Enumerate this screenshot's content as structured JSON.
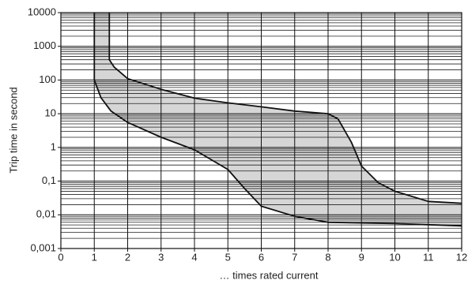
{
  "chart_data": {
    "type": "line",
    "log_scale_y": true,
    "grid": true,
    "band_fill": "#d6d6d6",
    "x_label": "… times rated current",
    "y_label": "Trip time in second",
    "xlim": [
      0,
      12
    ],
    "xticks": [
      0,
      1,
      2,
      3,
      4,
      5,
      6,
      7,
      8,
      9,
      10,
      11,
      12
    ],
    "ylim": [
      0.001,
      10000
    ],
    "yticks": [
      {
        "value": 0.001,
        "label": "0,001"
      },
      {
        "value": 0.01,
        "label": "0,01"
      },
      {
        "value": 0.1,
        "label": "0,1"
      },
      1,
      10,
      100,
      1000,
      10000
    ],
    "series": [
      {
        "color": "#111111",
        "x": [
          1.45,
          1.45,
          1.6,
          2,
          3,
          4,
          5,
          6,
          7,
          8,
          8.3,
          8.7,
          9,
          9.5,
          10,
          11,
          12
        ],
        "values": [
          10000,
          400,
          240,
          110,
          53,
          29,
          21,
          16,
          12,
          10,
          7,
          1.4,
          0.28,
          0.09,
          0.05,
          0.025,
          0.022
        ]
      },
      {
        "color": "#111111",
        "x": [
          1,
          1,
          1.2,
          1.5,
          2,
          3,
          4,
          5,
          5.5,
          6,
          7,
          8,
          10,
          12
        ],
        "values": [
          10000,
          100,
          30,
          12,
          5.5,
          2,
          0.85,
          0.22,
          0.06,
          0.018,
          0.009,
          0.006,
          0.0055,
          0.0047
        ]
      }
    ]
  }
}
